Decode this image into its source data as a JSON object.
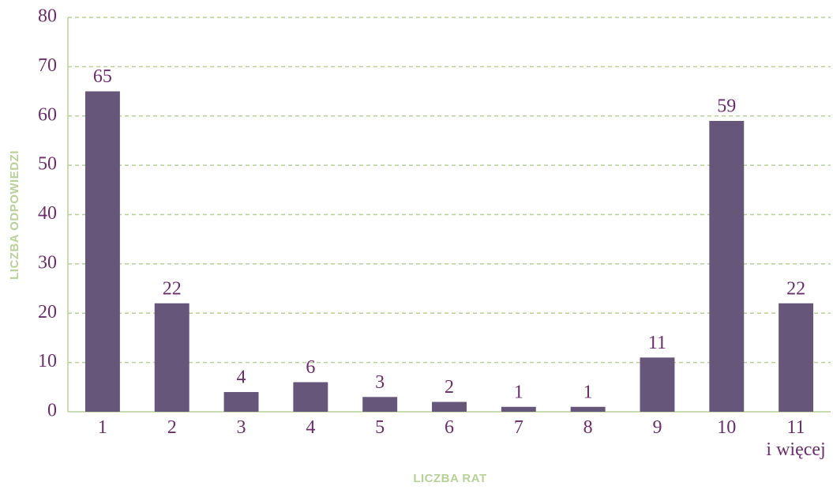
{
  "chart_data": {
    "type": "bar",
    "x_label": "LICZBA RAT",
    "y_label": "LICZBA ODPOWIEDZI",
    "categories": [
      "1",
      "2",
      "3",
      "4",
      "5",
      "6",
      "7",
      "8",
      "9",
      "10",
      "11\ni więcej"
    ],
    "values": [
      65,
      22,
      4,
      6,
      3,
      2,
      1,
      1,
      11,
      59,
      22
    ],
    "color": "#65567a",
    "ylim": [
      0,
      80
    ],
    "yticks": [
      0,
      10,
      20,
      30,
      40,
      50,
      60,
      70,
      80
    ],
    "grid": true
  }
}
